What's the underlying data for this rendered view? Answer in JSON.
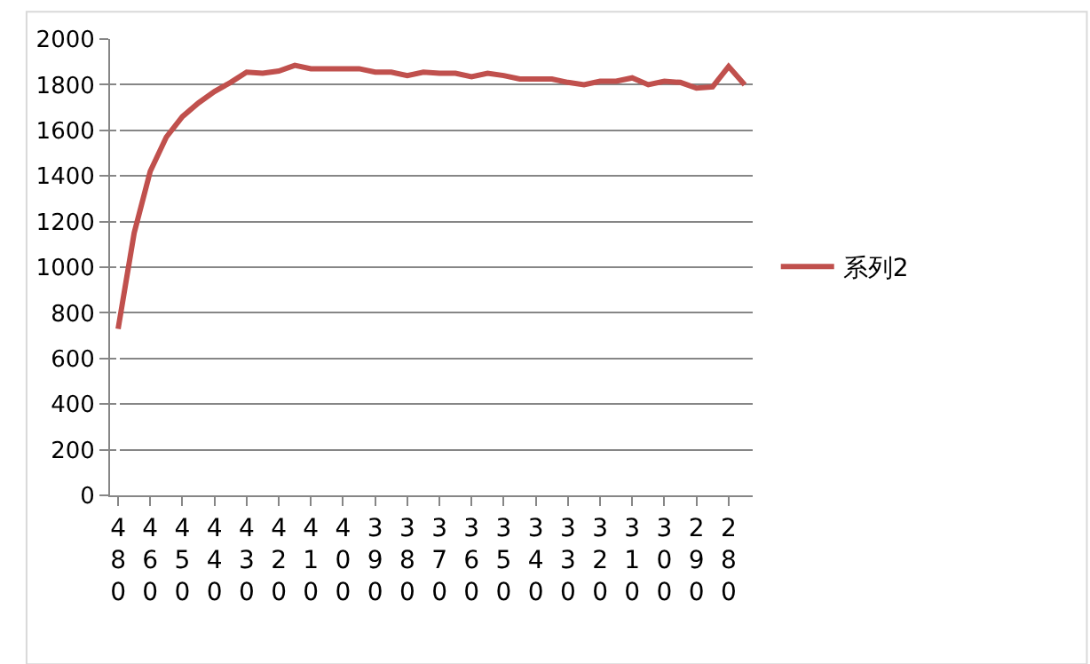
{
  "chart_data": {
    "type": "line",
    "categories": [
      "480",
      null,
      "460",
      null,
      "450",
      null,
      "440",
      null,
      "430",
      null,
      "420",
      null,
      "410",
      null,
      "400",
      null,
      "390",
      null,
      "380",
      null,
      "370",
      null,
      "360",
      null,
      "350",
      null,
      "340",
      null,
      "330",
      null,
      "320",
      null,
      "310",
      null,
      "300",
      null,
      "290",
      null,
      "280",
      null
    ],
    "series": [
      {
        "name": "系列2",
        "color": "#c0504d",
        "values": [
          730,
          1150,
          1420,
          1570,
          1660,
          1720,
          1770,
          1810,
          1855,
          1850,
          1860,
          1885,
          1870,
          1870,
          1870,
          1870,
          1855,
          1855,
          1840,
          1855,
          1850,
          1850,
          1835,
          1850,
          1840,
          1825,
          1825,
          1825,
          1810,
          1800,
          1815,
          1815,
          1830,
          1800,
          1815,
          1810,
          1785,
          1790,
          1880,
          1800
        ]
      }
    ],
    "ylim": [
      0,
      2000
    ],
    "yticks": [
      0,
      200,
      400,
      600,
      800,
      1000,
      1200,
      1400,
      1600,
      1800,
      2000
    ],
    "grid": "y",
    "legend": "right",
    "marker": "none",
    "line_style": "solid"
  }
}
